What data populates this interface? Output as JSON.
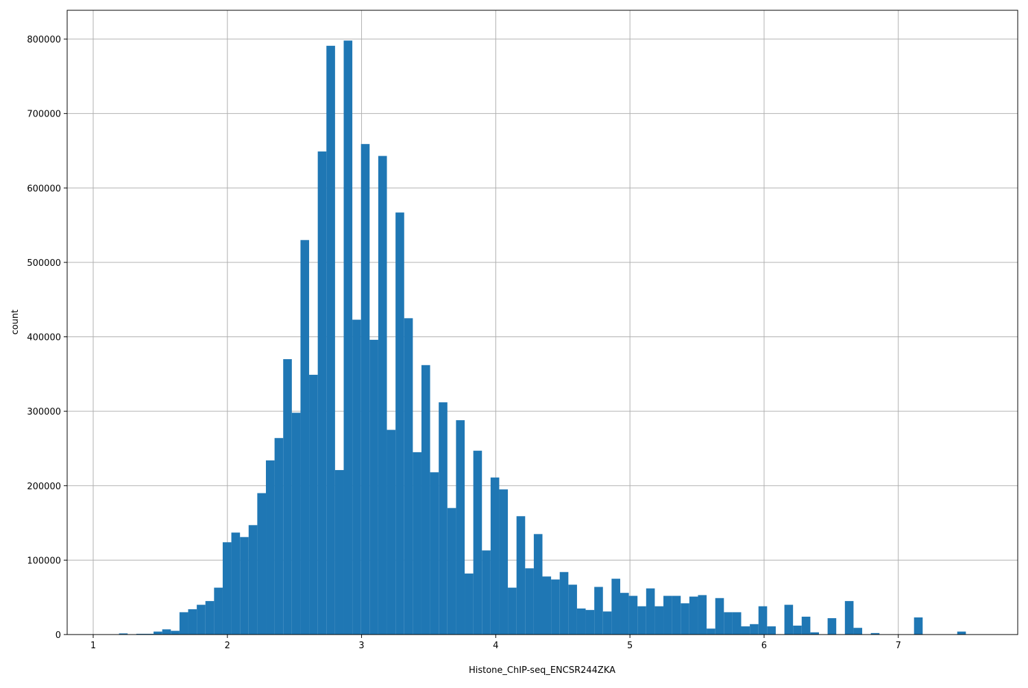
{
  "chart_data": {
    "type": "histogram",
    "xlabel": "Histone_ChIP-seq_ENCSR244ZKA",
    "ylabel": "count",
    "color": "#1f77b4",
    "grid": true,
    "xlim": [
      0.806,
      7.89
    ],
    "ylim": [
      0,
      838700
    ],
    "xticks": [
      1,
      2,
      3,
      4,
      5,
      6,
      7
    ],
    "yticks": [
      0,
      100000,
      200000,
      300000,
      400000,
      500000,
      600000,
      700000,
      800000
    ],
    "bins": [
      1.128,
      1.1924,
      1.2568,
      1.3212,
      1.3856,
      1.45,
      1.5144,
      1.5788,
      1.6432,
      1.7076,
      1.772,
      1.8364,
      1.9008,
      1.9652,
      2.0296,
      2.094,
      2.1584,
      2.2228,
      2.2872,
      2.3516,
      2.416,
      2.4804,
      2.5448,
      2.6092,
      2.6736,
      2.738,
      2.8024,
      2.8668,
      2.9312,
      2.9956,
      3.06,
      3.1244,
      3.1888,
      3.2532,
      3.3176,
      3.382,
      3.4464,
      3.5108,
      3.5752,
      3.6396,
      3.704,
      3.7684,
      3.8328,
      3.8972,
      3.9616,
      4.026,
      4.0904,
      4.1548,
      4.2192,
      4.2836,
      4.348,
      4.4124,
      4.4768,
      4.5412,
      4.6056,
      4.67,
      4.7344,
      4.7988,
      4.8632,
      4.9276,
      4.992,
      5.0564,
      5.1208,
      5.1852,
      5.2496,
      5.314,
      5.3784,
      5.4428,
      5.5072,
      5.5716,
      5.636,
      5.7004,
      5.7648,
      5.8292,
      5.8936,
      5.958,
      6.0224,
      6.0868,
      6.1512,
      6.2156,
      6.28,
      6.3444,
      6.4088,
      6.4732,
      6.5376,
      6.602,
      6.6664,
      6.7308,
      6.7952,
      6.8596,
      6.924,
      6.9884,
      7.0528,
      7.1172,
      7.1816,
      7.246,
      7.3104,
      7.3748,
      7.4392,
      7.5036,
      7.568
    ],
    "counts": [
      0,
      1500,
      0,
      1000,
      1000,
      4000,
      7000,
      5000,
      30000,
      34000,
      40000,
      45000,
      63000,
      124000,
      137000,
      131000,
      147000,
      190000,
      234000,
      264000,
      370000,
      298000,
      530000,
      349000,
      649000,
      791000,
      221000,
      798000,
      423000,
      659000,
      396000,
      643000,
      275000,
      567000,
      425000,
      245000,
      362000,
      218000,
      312000,
      170000,
      288000,
      82000,
      247000,
      113000,
      211000,
      195000,
      63000,
      159000,
      89000,
      135000,
      78000,
      74000,
      84000,
      67000,
      35000,
      33000,
      64000,
      31000,
      75000,
      56000,
      52000,
      38000,
      62000,
      38000,
      52000,
      52000,
      42000,
      51000,
      53000,
      8000,
      49000,
      30000,
      30000,
      11000,
      14000,
      38000,
      11000,
      0,
      40000,
      12000,
      24000,
      3000,
      0,
      22000,
      0,
      45000,
      9000,
      0,
      2000,
      0,
      0,
      0,
      0,
      23000,
      0,
      0,
      0,
      0,
      4000,
      0
    ]
  }
}
